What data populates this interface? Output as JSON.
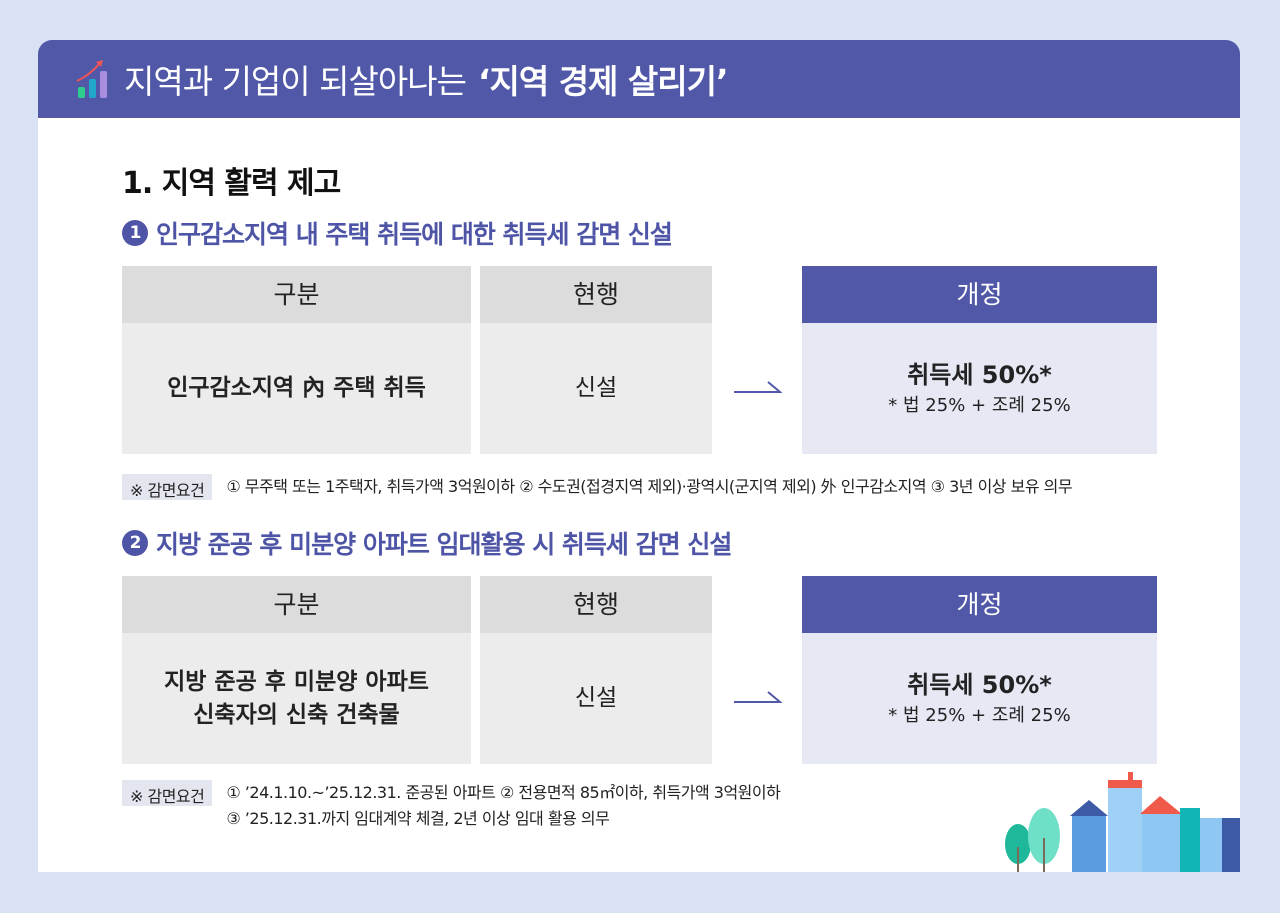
{
  "header": {
    "title_regular": "지역과 기업이 되살아나는",
    "title_bold": "‘지역 경제 살리기’",
    "icon": "growth-chart-icon"
  },
  "section_title": "1. 지역 활력 제고",
  "items": [
    {
      "number": "1",
      "heading": "인구감소지역 내 주택 취득에 대한 취득세 감면 신설",
      "columns": [
        "구분",
        "현행",
        "개정"
      ],
      "category": [
        "인구감소지역 內 주택 취득"
      ],
      "current": "신설",
      "revised_main": "취득세 50%*",
      "revised_note": "* 법 25% + 조례 25%",
      "note_label": "※ 감면요건",
      "note_lines": [
        "① 무주택 또는 1주택자, 취득가액 3억원이하  ② 수도권(접경지역 제외)·광역시(군지역 제외) 外 인구감소지역 ③ 3년 이상 보유 의무"
      ]
    },
    {
      "number": "2",
      "heading": "지방 준공 후 미분양 아파트 임대활용 시 취득세 감면 신설",
      "columns": [
        "구분",
        "현행",
        "개정"
      ],
      "category": [
        "지방 준공 후 미분양 아파트",
        "신축자의 신축 건축물"
      ],
      "current": "신설",
      "revised_main": "취득세 50%*",
      "revised_note": "* 법 25% + 조례 25%",
      "note_label": "※ 감면요건",
      "note_lines": [
        "① ’24.1.10.~’25.12.31. 준공된 아파트  ② 전용면적 85㎡이하, 취득가액 3억원이하",
        "③ ’25.12.31.까지 임대계약 체결, 2년 이상 임대 활용 의무"
      ]
    }
  ],
  "colors": {
    "header": "#5158a8",
    "accent": "#4e55a6",
    "background": "#d9e1f4"
  }
}
